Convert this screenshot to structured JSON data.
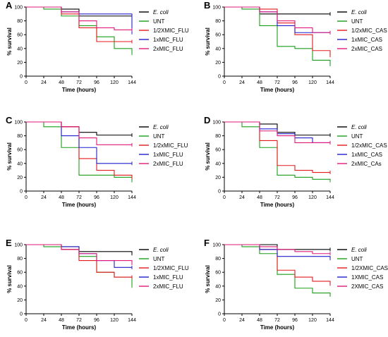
{
  "chart_data": [
    {
      "panel": "A",
      "type": "line",
      "xlabel": "Time (hours)",
      "ylabel": "% survival",
      "xticks": [
        0,
        24,
        48,
        72,
        96,
        120,
        144
      ],
      "yticks": [
        0,
        20,
        40,
        60,
        80,
        100
      ],
      "xlim": [
        0,
        144
      ],
      "ylim": [
        0,
        100
      ],
      "legend_position": "right",
      "series": [
        {
          "name": "E. coli",
          "italic": true,
          "color": "#000000",
          "x": [
            0,
            48,
            72,
            144
          ],
          "y": [
            100,
            97,
            87,
            87
          ]
        },
        {
          "name": "UNT",
          "color": "#1a9e1a",
          "x": [
            0,
            24,
            48,
            72,
            96,
            120,
            144
          ],
          "y": [
            100,
            97,
            87,
            73,
            57,
            40,
            33
          ]
        },
        {
          "name": "1/2XMIC_FLU",
          "color": "#e41a1c",
          "x": [
            0,
            48,
            72,
            96,
            120,
            144
          ],
          "y": [
            100,
            90,
            70,
            50,
            50,
            50
          ]
        },
        {
          "name": "1xMIC_FLU",
          "color": "#1f1fcc",
          "x": [
            0,
            48,
            72,
            144
          ],
          "y": [
            100,
            93,
            90,
            63
          ]
        },
        {
          "name": "2xMIC_FLU",
          "color": "#e0197b",
          "x": [
            0,
            48,
            72,
            96,
            120,
            144
          ],
          "y": [
            100,
            93,
            80,
            70,
            67,
            67
          ]
        }
      ]
    },
    {
      "panel": "B",
      "type": "line",
      "xlabel": "Time (hours)",
      "ylabel": "% survival",
      "xticks": [
        0,
        24,
        48,
        72,
        96,
        120,
        144
      ],
      "yticks": [
        0,
        20,
        40,
        60,
        80,
        100
      ],
      "xlim": [
        0,
        144
      ],
      "ylim": [
        0,
        100
      ],
      "legend_position": "right",
      "series": [
        {
          "name": "E. coli",
          "italic": true,
          "color": "#000000",
          "x": [
            0,
            48,
            144
          ],
          "y": [
            100,
            90,
            90
          ]
        },
        {
          "name": "UNT",
          "color": "#1a9e1a",
          "x": [
            0,
            24,
            48,
            72,
            96,
            120,
            144
          ],
          "y": [
            100,
            97,
            73,
            43,
            40,
            23,
            17
          ]
        },
        {
          "name": "1/2xMIC_CAS",
          "color": "#e41a1c",
          "x": [
            0,
            48,
            72,
            96,
            120,
            144
          ],
          "y": [
            100,
            97,
            77,
            60,
            37,
            30
          ]
        },
        {
          "name": "1xMIC_CAS",
          "color": "#1f1fcc",
          "x": [
            0,
            48,
            72,
            96,
            144
          ],
          "y": [
            100,
            93,
            73,
            63,
            63
          ]
        },
        {
          "name": "2xMIC_CAS",
          "color": "#e0197b",
          "x": [
            0,
            48,
            72,
            96,
            120,
            144
          ],
          "y": [
            100,
            93,
            80,
            70,
            63,
            63
          ]
        }
      ]
    },
    {
      "panel": "C",
      "type": "line",
      "xlabel": "Time (hours)",
      "ylabel": "% survival",
      "xticks": [
        0,
        24,
        48,
        72,
        96,
        120,
        144
      ],
      "yticks": [
        0,
        20,
        40,
        60,
        80,
        100
      ],
      "xlim": [
        0,
        144
      ],
      "ylim": [
        0,
        100
      ],
      "legend_position": "right",
      "series": [
        {
          "name": "E. coli",
          "italic": true,
          "color": "#000000",
          "x": [
            0,
            48,
            72,
            96,
            144
          ],
          "y": [
            100,
            93,
            85,
            81,
            81
          ]
        },
        {
          "name": "UNT",
          "color": "#1a9e1a",
          "x": [
            0,
            24,
            48,
            72,
            120,
            144
          ],
          "y": [
            100,
            93,
            63,
            23,
            20,
            15
          ]
        },
        {
          "name": "1/2xMIC_FLU",
          "color": "#e41a1c",
          "x": [
            0,
            48,
            72,
            96,
            120,
            144
          ],
          "y": [
            100,
            93,
            47,
            30,
            23,
            20
          ]
        },
        {
          "name": "1xMIC_FLU",
          "color": "#1f1fcc",
          "x": [
            0,
            48,
            72,
            96,
            144
          ],
          "y": [
            100,
            80,
            63,
            40,
            40
          ]
        },
        {
          "name": "2xMIC_FLU",
          "color": "#e0197b",
          "x": [
            0,
            48,
            72,
            96,
            144
          ],
          "y": [
            100,
            93,
            77,
            67,
            67
          ]
        }
      ]
    },
    {
      "panel": "D",
      "type": "line",
      "xlabel": "Time (hours)",
      "ylabel": "% survival",
      "xticks": [
        0,
        24,
        48,
        72,
        96,
        120,
        144
      ],
      "yticks": [
        0,
        20,
        40,
        60,
        80,
        100
      ],
      "xlim": [
        0,
        144
      ],
      "ylim": [
        0,
        100
      ],
      "legend_position": "right",
      "series": [
        {
          "name": "E. coli",
          "italic": true,
          "color": "#000000",
          "x": [
            0,
            48,
            72,
            96,
            144
          ],
          "y": [
            100,
            97,
            85,
            81,
            81
          ]
        },
        {
          "name": "UNT",
          "color": "#1a9e1a",
          "x": [
            0,
            24,
            48,
            72,
            96,
            120,
            144
          ],
          "y": [
            100,
            93,
            63,
            23,
            20,
            17,
            15
          ]
        },
        {
          "name": "1/2xMIC_CAS",
          "color": "#e41a1c",
          "x": [
            0,
            48,
            72,
            96,
            120,
            144
          ],
          "y": [
            100,
            73,
            37,
            30,
            27,
            27
          ]
        },
        {
          "name": "1xMIC_CAS",
          "color": "#1f1fcc",
          "x": [
            0,
            48,
            72,
            96,
            120,
            144
          ],
          "y": [
            100,
            90,
            83,
            77,
            70,
            70
          ]
        },
        {
          "name": "2xMIC_CAs",
          "color": "#e0197b",
          "x": [
            0,
            48,
            72,
            96,
            144
          ],
          "y": [
            100,
            87,
            80,
            70,
            70
          ]
        }
      ]
    },
    {
      "panel": "E",
      "type": "line",
      "xlabel": "Time (hours)",
      "ylabel": "% survival",
      "xticks": [
        0,
        24,
        48,
        72,
        96,
        120,
        144
      ],
      "yticks": [
        0,
        20,
        40,
        60,
        80,
        100
      ],
      "xlim": [
        0,
        144
      ],
      "ylim": [
        0,
        100
      ],
      "legend_position": "right",
      "series": [
        {
          "name": "E. coli",
          "italic": true,
          "color": "#000000",
          "x": [
            0,
            48,
            72,
            144
          ],
          "y": [
            100,
            97,
            90,
            87
          ]
        },
        {
          "name": "UNT",
          "color": "#1a9e1a",
          "x": [
            0,
            24,
            48,
            72,
            96,
            120,
            144
          ],
          "y": [
            100,
            97,
            93,
            83,
            60,
            53,
            40
          ]
        },
        {
          "name": "1/2XMIC_FLU",
          "color": "#e41a1c",
          "x": [
            0,
            48,
            72,
            96,
            120,
            144
          ],
          "y": [
            100,
            93,
            77,
            60,
            53,
            53
          ]
        },
        {
          "name": "1xMIC_FLU",
          "color": "#1f1fcc",
          "x": [
            0,
            48,
            72,
            96,
            120,
            144
          ],
          "y": [
            100,
            97,
            87,
            77,
            67,
            67
          ]
        },
        {
          "name": "2xMIC_FLU",
          "color": "#e0197b",
          "x": [
            0,
            48,
            72,
            96,
            144
          ],
          "y": [
            100,
            93,
            87,
            77,
            73
          ]
        }
      ]
    },
    {
      "panel": "F",
      "type": "line",
      "xlabel": "Time (hours)",
      "ylabel": "% survival",
      "xticks": [
        0,
        24,
        48,
        72,
        96,
        120,
        144
      ],
      "yticks": [
        0,
        20,
        40,
        60,
        80,
        100
      ],
      "xlim": [
        0,
        144
      ],
      "ylim": [
        0,
        100
      ],
      "legend_position": "right",
      "series": [
        {
          "name": "E. coli",
          "italic": true,
          "color": "#000000",
          "x": [
            0,
            72,
            96,
            144
          ],
          "y": [
            100,
            93,
            93,
            93
          ]
        },
        {
          "name": "UNT",
          "color": "#1a9e1a",
          "x": [
            0,
            24,
            48,
            72,
            96,
            120,
            144
          ],
          "y": [
            100,
            97,
            87,
            57,
            37,
            30,
            27
          ]
        },
        {
          "name": "1/2XMIC_CAS",
          "color": "#e41a1c",
          "x": [
            0,
            48,
            72,
            96,
            120,
            144
          ],
          "y": [
            100,
            93,
            63,
            53,
            47,
            43
          ]
        },
        {
          "name": "1XMIC_CAS",
          "color": "#1f1fcc",
          "x": [
            0,
            48,
            72,
            144
          ],
          "y": [
            100,
            93,
            83,
            80
          ]
        },
        {
          "name": "2XMIC_CAS",
          "color": "#e0197b",
          "x": [
            0,
            48,
            72,
            96,
            120,
            144
          ],
          "y": [
            100,
            97,
            93,
            90,
            87,
            87
          ]
        }
      ]
    }
  ]
}
